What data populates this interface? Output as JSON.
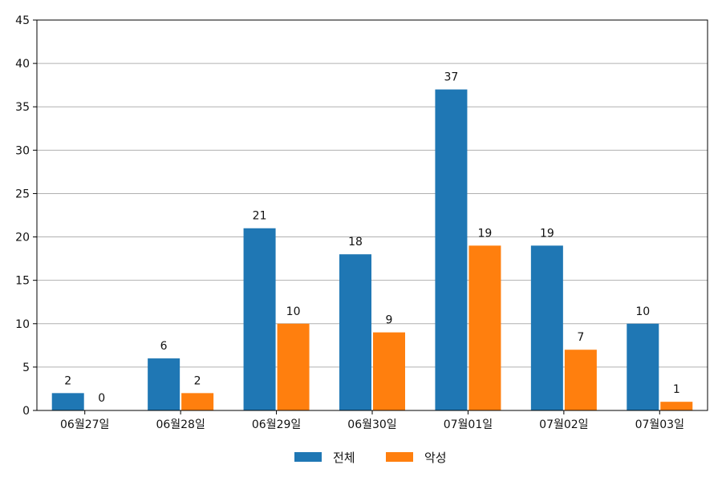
{
  "chart_data": {
    "type": "bar",
    "categories": [
      "06월27일",
      "06월28일",
      "06월29일",
      "06월30일",
      "07월01일",
      "07월02일",
      "07월03일"
    ],
    "series": [
      {
        "name": "전체",
        "values": [
          2,
          6,
          21,
          18,
          37,
          19,
          10
        ],
        "color": "#1f77b4"
      },
      {
        "name": "악성",
        "values": [
          0,
          2,
          10,
          9,
          19,
          7,
          1
        ],
        "color": "#ff7f0e"
      }
    ],
    "ylim": [
      0,
      45
    ],
    "yticks": [
      0,
      5,
      10,
      15,
      20,
      25,
      30,
      35,
      40,
      45
    ],
    "grid": "y",
    "legend_position": "bottom-center",
    "data_labels": true
  }
}
